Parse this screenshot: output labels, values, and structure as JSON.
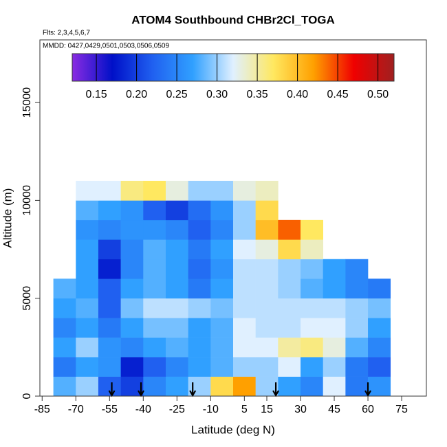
{
  "chart_data": {
    "type": "heatmap",
    "title": "ATOM4 Southbound CHBr2Cl_TOGA",
    "subtitle": "Flts: 2,3,4,5,6,7",
    "annotation": "MMDD: 0427,0429,0501,0503,0506,0509",
    "x_label": "Latitude (deg N)",
    "y_label": "Altitude (m)",
    "xlim": [
      -86,
      86
    ],
    "xticks": [
      -85,
      -70,
      -55,
      -40,
      -25,
      -10,
      5,
      15,
      30,
      45,
      60,
      75
    ],
    "ylim": [
      0,
      18200
    ],
    "yticks": [
      0,
      5000,
      10000,
      15000
    ],
    "x_bins": [
      -80,
      -70,
      -60,
      -50,
      -40,
      -30,
      -20,
      -10,
      0,
      10,
      20,
      30,
      40,
      50,
      60,
      70
    ],
    "y_bins": [
      0,
      1000,
      2000,
      3000,
      4000,
      5000,
      6000,
      7000,
      8000,
      9000,
      10000,
      11000
    ],
    "z": [
      [
        0.28,
        0.3,
        0.22,
        0.2,
        0.25,
        0.27,
        0.3,
        0.38,
        0.42,
        0.3,
        0.27,
        0.25,
        0.32,
        0.24,
        0.26
      ],
      [
        0.24,
        0.27,
        0.26,
        0.18,
        0.22,
        0.25,
        0.27,
        0.28,
        0.3,
        0.3,
        0.32,
        0.27,
        0.3,
        0.24,
        0.22
      ],
      [
        0.27,
        0.3,
        0.26,
        0.25,
        0.27,
        0.28,
        0.27,
        0.28,
        0.32,
        0.32,
        0.35,
        0.36,
        0.33,
        0.28,
        0.25
      ],
      [
        0.25,
        0.27,
        0.24,
        0.27,
        0.29,
        0.29,
        0.27,
        0.28,
        0.32,
        0.31,
        0.31,
        0.32,
        0.32,
        0.3,
        0.27
      ],
      [
        0.27,
        0.28,
        0.22,
        0.29,
        0.31,
        0.31,
        0.3,
        0.29,
        0.31,
        0.31,
        0.31,
        0.31,
        0.31,
        0.3,
        0.29
      ],
      [
        0.28,
        0.27,
        0.22,
        0.27,
        0.28,
        0.27,
        0.24,
        0.27,
        0.31,
        0.31,
        0.3,
        0.28,
        0.27,
        0.25,
        0.24
      ],
      [
        null,
        0.27,
        0.18,
        0.25,
        0.28,
        0.27,
        0.23,
        0.26,
        0.31,
        0.31,
        0.3,
        0.29,
        0.27,
        0.25,
        null
      ],
      [
        null,
        0.27,
        0.2,
        0.25,
        0.28,
        0.27,
        0.24,
        0.27,
        0.32,
        0.33,
        0.38,
        0.34,
        null,
        null,
        null
      ],
      [
        null,
        0.26,
        0.25,
        0.26,
        0.26,
        0.25,
        0.22,
        0.25,
        0.3,
        0.4,
        0.44,
        0.37,
        null,
        null,
        null
      ],
      [
        null,
        0.28,
        0.27,
        0.26,
        0.22,
        0.2,
        0.23,
        0.26,
        0.3,
        0.38,
        null,
        null,
        null,
        null,
        null
      ],
      [
        null,
        0.32,
        0.32,
        0.36,
        0.37,
        0.33,
        0.3,
        0.3,
        0.33,
        0.34,
        null,
        null,
        null,
        null,
        null
      ]
    ],
    "clim": [
      0.12,
      0.52
    ],
    "cticks": [
      {
        "value": 0.15,
        "label": "0.15"
      },
      {
        "value": 0.2,
        "label": "0.20"
      },
      {
        "value": 0.25,
        "label": "0.25"
      },
      {
        "value": 0.3,
        "label": "0.30"
      },
      {
        "value": 0.35,
        "label": "0.35"
      },
      {
        "value": 0.4,
        "label": "0.40"
      },
      {
        "value": 0.45,
        "label": "0.45"
      },
      {
        "value": 0.5,
        "label": "0.50"
      }
    ],
    "colorscale": [
      "#8a2be2",
      "#0010c8",
      "#2060f0",
      "#30a0ff",
      "#e0f0ff",
      "#ffe860",
      "#ffa000",
      "#f00000",
      "#a02020"
    ],
    "arrows": [
      -54,
      -41,
      -18,
      19,
      60
    ]
  }
}
